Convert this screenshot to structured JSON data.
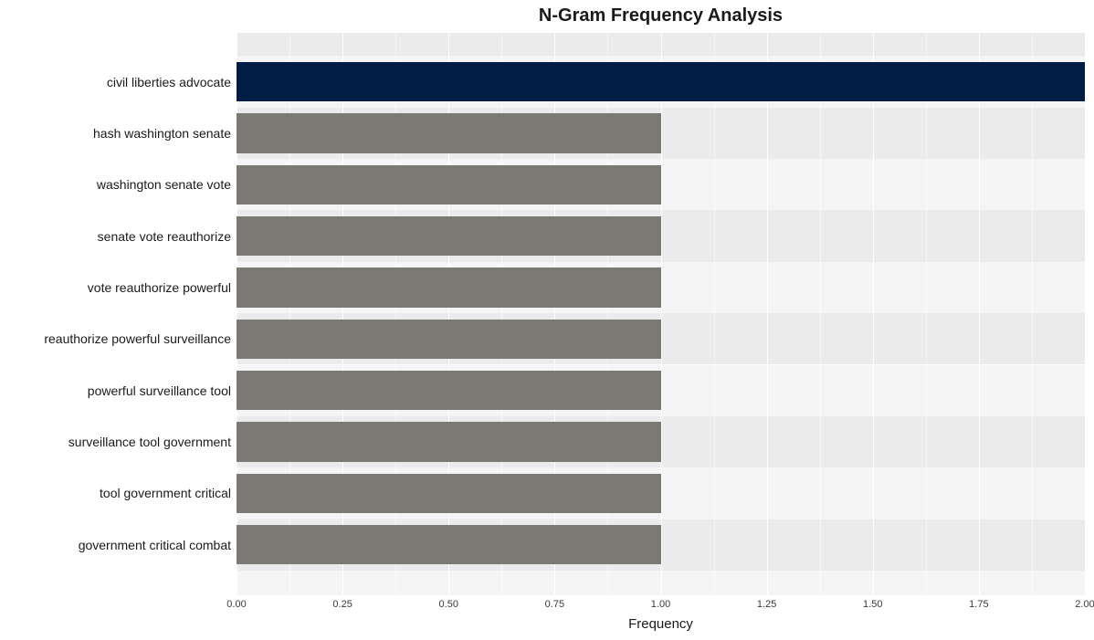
{
  "chart": {
    "type": "bar-horizontal",
    "title": "N-Gram Frequency Analysis",
    "title_fontsize": 20,
    "title_fontweight": 700,
    "xlabel": "Frequency",
    "xlabel_fontsize": 15,
    "ylabel_fontsize": 14,
    "xtick_fontsize": 11,
    "xlim": [
      0,
      2
    ],
    "xtick_step": 0.25,
    "xticks": [
      "0.00",
      "0.25",
      "0.50",
      "0.75",
      "1.00",
      "1.25",
      "1.50",
      "1.75",
      "2.00"
    ],
    "xtick_values": [
      0,
      0.25,
      0.5,
      0.75,
      1.0,
      1.25,
      1.5,
      1.75,
      2.0
    ],
    "minor_tick_values": [
      0.125,
      0.375,
      0.625,
      0.875,
      1.125,
      1.375,
      1.625,
      1.875
    ],
    "panel_bg_even": "#ebebeb",
    "panel_bg_odd": "#f5f5f5",
    "grid_major_color": "#ffffff",
    "grid_minor_color": "#ffffff",
    "bar_width_ratio": 0.77,
    "row_count": 10,
    "top_pad_rows": 0.45,
    "bottom_pad_rows": 0.48,
    "categories": [
      "civil liberties advocate",
      "hash washington senate",
      "washington senate vote",
      "senate vote reauthorize",
      "vote reauthorize powerful",
      "reauthorize powerful surveillance",
      "powerful surveillance tool",
      "surveillance tool government",
      "tool government critical",
      "government critical combat"
    ],
    "values": [
      2,
      1,
      1,
      1,
      1,
      1,
      1,
      1,
      1,
      1
    ],
    "bar_colors": [
      "#001e44",
      "#7b7974",
      "#7b7974",
      "#7b7974",
      "#7b7974",
      "#7b7974",
      "#7b7974",
      "#7b7974",
      "#7b7974",
      "#7b7974"
    ],
    "background_color": "#ffffff",
    "text_color": "#1a1a1a"
  }
}
